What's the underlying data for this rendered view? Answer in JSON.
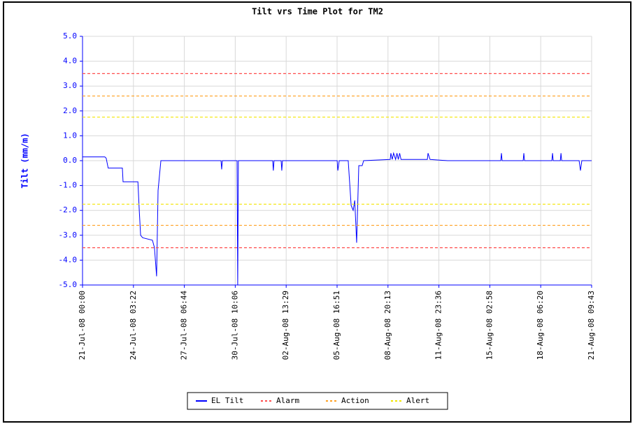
{
  "chart_data": {
    "type": "line",
    "title": "Tilt vrs Time Plot for TM2",
    "ylabel": "Tilt (mm/m)",
    "xlim": [
      "2008-07-21T00:00",
      "2008-08-21T09:43"
    ],
    "xticks": [
      {
        "value": "2008-07-21T00:00",
        "label": "21-Jul-08 00:00"
      },
      {
        "value": "2008-07-24T03:22",
        "label": "24-Jul-08 03:22"
      },
      {
        "value": "2008-07-27T06:44",
        "label": "27-Jul-08 06:44"
      },
      {
        "value": "2008-07-30T10:06",
        "label": "30-Jul-08 10:06"
      },
      {
        "value": "2008-08-02T13:29",
        "label": "02-Aug-08 13:29"
      },
      {
        "value": "2008-08-05T16:51",
        "label": "05-Aug-08 16:51"
      },
      {
        "value": "2008-08-08T20:13",
        "label": "08-Aug-08 20:13"
      },
      {
        "value": "2008-08-11T23:36",
        "label": "11-Aug-08 23:36"
      },
      {
        "value": "2008-08-15T02:58",
        "label": "15-Aug-08 02:58"
      },
      {
        "value": "2008-08-18T06:20",
        "label": "18-Aug-08 06:20"
      },
      {
        "value": "2008-08-21T09:43",
        "label": "21-Aug-08 09:43"
      }
    ],
    "ylim": [
      -5,
      5
    ],
    "yticks": [
      {
        "value": 5,
        "label": "5.0"
      },
      {
        "value": 4,
        "label": "4.0"
      },
      {
        "value": 3,
        "label": "3.0"
      },
      {
        "value": 2,
        "label": "2.0"
      },
      {
        "value": 1,
        "label": "1.0"
      },
      {
        "value": 0,
        "label": "0.0"
      },
      {
        "value": -1,
        "label": "-1.0"
      },
      {
        "value": -2,
        "label": "-2.0"
      },
      {
        "value": -3,
        "label": "-3.0"
      },
      {
        "value": -4,
        "label": "-4.0"
      },
      {
        "value": -5,
        "label": "-5.0"
      }
    ],
    "grid": true,
    "legend": "bottom",
    "series": [
      {
        "name": "EL Tilt",
        "color": "#0000ff",
        "x": [
          "2008-07-21T00:00",
          "2008-07-22T09:00",
          "2008-07-22T11:00",
          "2008-07-22T14:00",
          "2008-07-23T11:00",
          "2008-07-23T12:00",
          "2008-07-24T10:00",
          "2008-07-24T12:00",
          "2008-07-24T14:00",
          "2008-07-24T17:00",
          "2008-07-25T07:30",
          "2008-07-25T10:30",
          "2008-07-25T13:40",
          "2008-07-25T15:50",
          "2008-07-25T20:00",
          "2008-07-29T13:00",
          "2008-07-29T14:00",
          "2008-07-29T15:00",
          "2008-07-30T12:45",
          "2008-07-30T13:45",
          "2008-07-30T14:45",
          "2008-08-01T17:30",
          "2008-08-01T18:30",
          "2008-08-01T19:30",
          "2008-08-02T06:00",
          "2008-08-02T07:00",
          "2008-08-02T08:00",
          "2008-08-05T17:00",
          "2008-08-05T18:00",
          "2008-08-05T20:00",
          "2008-08-06T09:20",
          "2008-08-06T13:40",
          "2008-08-06T16:40",
          "2008-08-06T19:00",
          "2008-08-06T21:50",
          "2008-08-07T01:00",
          "2008-08-07T06:00",
          "2008-08-07T08:10",
          "2008-08-08T23:30",
          "2008-08-09T00:30",
          "2008-08-09T02:30",
          "2008-08-09T04:30",
          "2008-08-09T07:30",
          "2008-08-09T09:30",
          "2008-08-09T11:30",
          "2008-08-09T13:30",
          "2008-08-09T15:30",
          "2008-08-11T06:30",
          "2008-08-11T07:30",
          "2008-08-11T10:30",
          "2008-08-12T12:30",
          "2008-08-15T19:10",
          "2008-08-15T20:10",
          "2008-08-15T21:10",
          "2008-08-17T04:20",
          "2008-08-17T05:20",
          "2008-08-17T06:20",
          "2008-08-18T22:50",
          "2008-08-18T23:50",
          "2008-08-19T00:50",
          "2008-08-19T11:20",
          "2008-08-19T12:20",
          "2008-08-19T13:20",
          "2008-08-20T15:10",
          "2008-08-20T17:10",
          "2008-08-20T19:10",
          "2008-08-21T09:43"
        ],
        "values": [
          0.15,
          0.15,
          0.1,
          -0.3,
          -0.3,
          -0.85,
          -0.85,
          -2.0,
          -3.0,
          -3.1,
          -3.2,
          -3.5,
          -4.65,
          -1.2,
          0,
          0,
          -0.35,
          0,
          0,
          -5.0,
          0,
          0,
          -0.4,
          0,
          0,
          -0.4,
          0,
          0,
          -0.4,
          0,
          0,
          -1.8,
          -2.0,
          -1.6,
          -3.3,
          -0.2,
          -0.2,
          0,
          0.05,
          0.3,
          0.05,
          0.3,
          0.05,
          0.3,
          0.05,
          0.3,
          0.05,
          0.05,
          0.3,
          0.05,
          0,
          0,
          0.3,
          0,
          0,
          0.3,
          0,
          0,
          0.3,
          0,
          0,
          0.3,
          0,
          0,
          -0.4,
          0,
          0
        ]
      },
      {
        "name": "Alarm",
        "color": "#ff4d4d",
        "dashed": true,
        "values": [
          3.5,
          -3.5
        ]
      },
      {
        "name": "Action",
        "color": "#ffa020",
        "dashed": true,
        "values": [
          2.6,
          -2.6
        ]
      },
      {
        "name": "Alert",
        "color": "#f2e600",
        "dashed": true,
        "values": [
          1.75,
          -1.75
        ]
      }
    ]
  }
}
